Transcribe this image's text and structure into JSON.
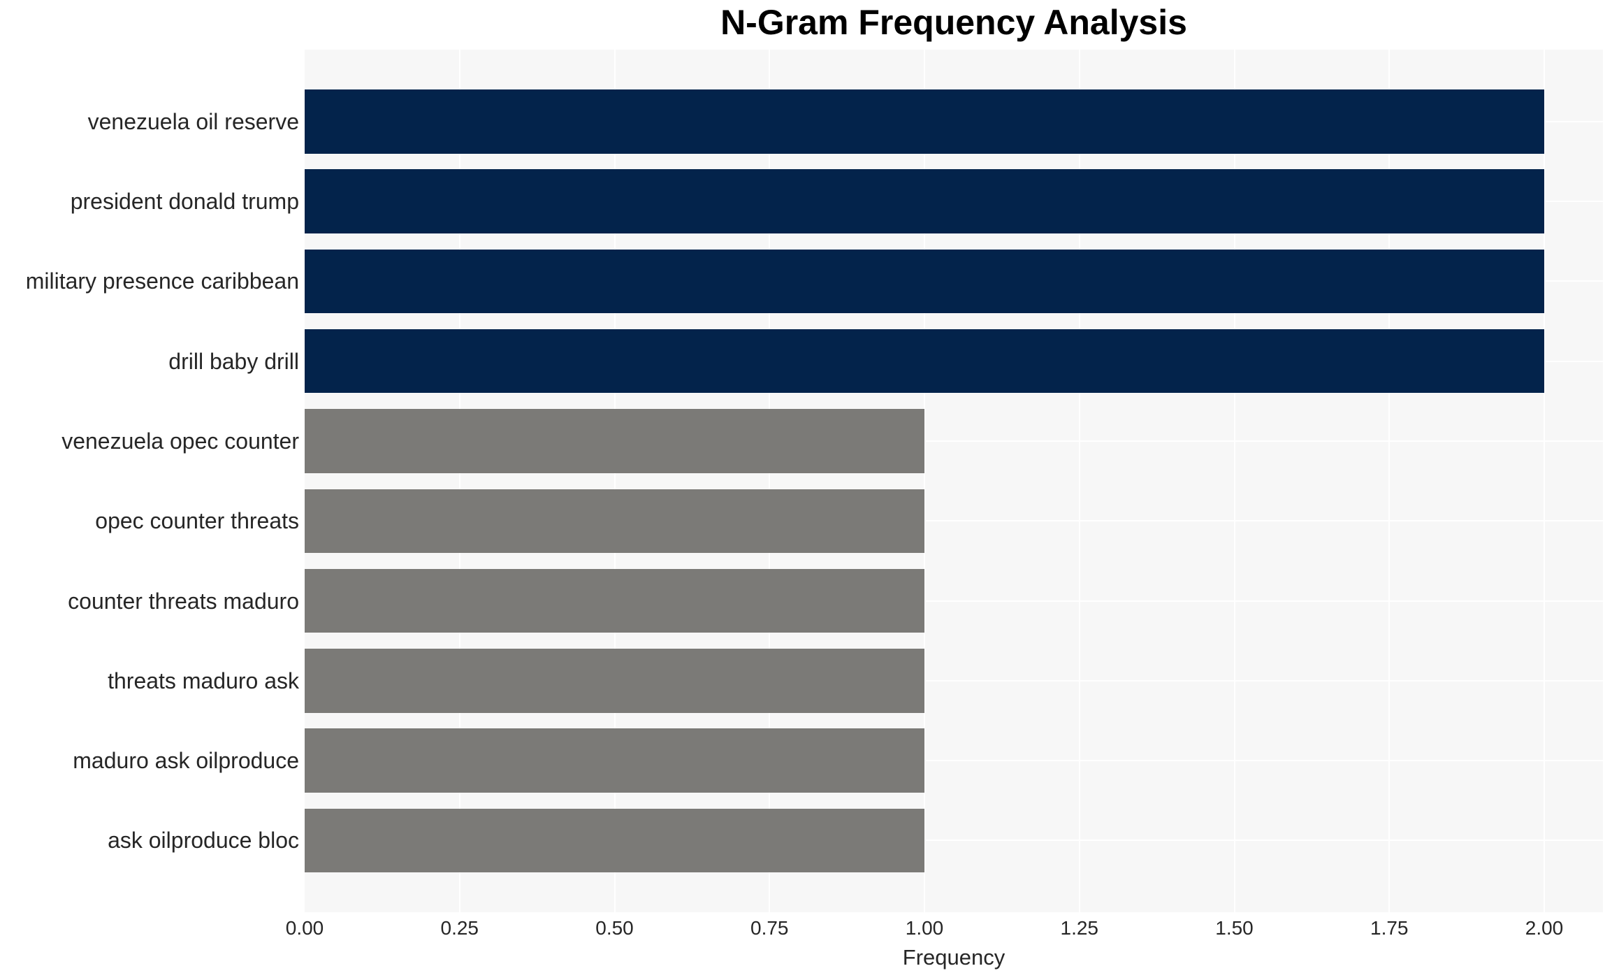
{
  "chart_data": {
    "type": "bar",
    "orientation": "horizontal",
    "title": "N-Gram Frequency Analysis",
    "xlabel": "Frequency",
    "ylabel": "",
    "categories": [
      "venezuela oil reserve",
      "president donald trump",
      "military presence caribbean",
      "drill baby drill",
      "venezuela opec counter",
      "opec counter threats",
      "counter threats maduro",
      "threats maduro ask",
      "maduro ask oilproduce",
      "ask oilproduce bloc"
    ],
    "values": [
      2,
      2,
      2,
      2,
      1,
      1,
      1,
      1,
      1,
      1
    ],
    "xlim": [
      0,
      2.09
    ],
    "xtick_values": [
      0.0,
      0.25,
      0.5,
      0.75,
      1.0,
      1.25,
      1.5,
      1.75,
      2.0
    ],
    "xtick_labels": [
      "0.00",
      "0.25",
      "0.50",
      "0.75",
      "1.00",
      "1.25",
      "1.50",
      "1.75",
      "2.00"
    ],
    "grid": {
      "vertical": true,
      "horizontal_at_category_centers": true
    },
    "legend": false,
    "color_rule": "value >= 2 uses bar_high, otherwise bar_low",
    "colors": {
      "bar_high": "#03234b",
      "bar_low": "#7b7a77",
      "plot_bg": "#f7f7f7",
      "fig_bg": "#ffffff",
      "grid": "#ffffff",
      "text": "#262626",
      "title": "#000000"
    }
  }
}
